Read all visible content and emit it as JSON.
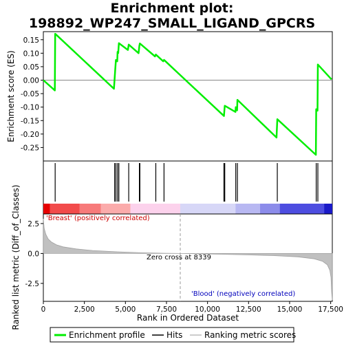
{
  "title_line1": "Enrichment plot:",
  "title_line2": "198892_WP247_SMALL_LIGAND_GPCRS",
  "colors": {
    "enrichment": "#00ee00",
    "hits": "#000000",
    "metric_fill": "#c0c0c0",
    "red": "#cc0000",
    "blue": "#0000bb"
  },
  "chart_data": {
    "type": "line",
    "x_range": [
      0,
      17600
    ],
    "es_panel": {
      "ylabel": "Enrichment score (ES)",
      "ylim": [
        -0.3,
        0.18
      ],
      "y_ticks": [
        0.15,
        0.1,
        0.05,
        0.0,
        -0.05,
        -0.1,
        -0.15,
        -0.2,
        -0.25
      ],
      "y_tick_labels": [
        "0.15",
        "0.10",
        "0.05",
        "0.00",
        "-0.05",
        "-0.10",
        "-0.15",
        "-0.20",
        "-0.25"
      ],
      "points": [
        [
          0,
          0.0
        ],
        [
          700,
          -0.038
        ],
        [
          720,
          0.172
        ],
        [
          4300,
          -0.032
        ],
        [
          4340,
          0.005
        ],
        [
          4380,
          0.04
        ],
        [
          4420,
          0.075
        ],
        [
          4500,
          0.07
        ],
        [
          4520,
          0.105
        ],
        [
          4560,
          0.1
        ],
        [
          4600,
          0.137
        ],
        [
          5150,
          0.112
        ],
        [
          5200,
          0.132
        ],
        [
          5800,
          0.1
        ],
        [
          5850,
          0.128
        ],
        [
          5880,
          0.136
        ],
        [
          6800,
          0.088
        ],
        [
          6850,
          0.095
        ],
        [
          7300,
          0.07
        ],
        [
          7350,
          0.075
        ],
        [
          11000,
          -0.133
        ],
        [
          11050,
          -0.095
        ],
        [
          11700,
          -0.118
        ],
        [
          11720,
          -0.1
        ],
        [
          11800,
          -0.112
        ],
        [
          11820,
          -0.073
        ],
        [
          14200,
          -0.213
        ],
        [
          14250,
          -0.145
        ],
        [
          16600,
          -0.277
        ],
        [
          16620,
          -0.108
        ],
        [
          16700,
          -0.113
        ],
        [
          16720,
          0.058
        ],
        [
          17550,
          0.003
        ]
      ]
    },
    "hits": [
      720,
      4340,
      4420,
      4520,
      4600,
      5200,
      5850,
      5880,
      6850,
      7350,
      11000,
      11050,
      11720,
      11820,
      14250,
      16620,
      16720
    ],
    "metric_panel": {
      "ylabel": "Ranked list metric (Diff_of_Classes)",
      "ylim": [
        -4.0,
        3.3
      ],
      "y_ticks": [
        2.5,
        0.0,
        -2.5
      ],
      "y_tick_labels": [
        "2.5",
        "0.0",
        "-2.5"
      ],
      "curve": [
        [
          0,
          2.9
        ],
        [
          50,
          2.1
        ],
        [
          150,
          1.6
        ],
        [
          300,
          1.2
        ],
        [
          500,
          0.95
        ],
        [
          800,
          0.72
        ],
        [
          1200,
          0.55
        ],
        [
          2000,
          0.38
        ],
        [
          3000,
          0.25
        ],
        [
          4500,
          0.14
        ],
        [
          6000,
          0.06
        ],
        [
          7500,
          0.02
        ],
        [
          8339,
          0.0
        ],
        [
          9500,
          -0.03
        ],
        [
          11000,
          -0.07
        ],
        [
          12500,
          -0.12
        ],
        [
          14000,
          -0.18
        ],
        [
          15500,
          -0.28
        ],
        [
          16500,
          -0.45
        ],
        [
          17000,
          -0.65
        ],
        [
          17300,
          -0.95
        ],
        [
          17450,
          -1.4
        ],
        [
          17520,
          -2.0
        ],
        [
          17560,
          -3.2
        ],
        [
          17600,
          -3.9
        ]
      ],
      "zero_cross": 8339,
      "zero_cross_label": "Zero cross at 8339",
      "pos_label": "'Breast' (positively correlated)",
      "neg_label": "'Blood' (negatively correlated)"
    },
    "x_ticks": [
      0,
      2500,
      5000,
      7500,
      10000,
      12500,
      15000,
      17500
    ],
    "x_tick_labels": [
      "0",
      "2,500",
      "5,000",
      "7,500",
      "10,000",
      "12,500",
      "15,000",
      "17,500"
    ],
    "xlabel": "Rank in Ordered Dataset",
    "color_bar": [
      {
        "from": 0,
        "to": 400,
        "color": "#e60000"
      },
      {
        "from": 400,
        "to": 2200,
        "color": "#f24b4b"
      },
      {
        "from": 2200,
        "to": 3500,
        "color": "#f77a7a"
      },
      {
        "from": 3500,
        "to": 5300,
        "color": "#fbabab"
      },
      {
        "from": 5300,
        "to": 8339,
        "color": "#fcd2ec"
      },
      {
        "from": 8339,
        "to": 11700,
        "color": "#d7d7f7"
      },
      {
        "from": 11700,
        "to": 13200,
        "color": "#b8b8f2"
      },
      {
        "from": 13200,
        "to": 14400,
        "color": "#8c8cea"
      },
      {
        "from": 14400,
        "to": 17100,
        "color": "#4d4de0"
      },
      {
        "from": 17100,
        "to": 17600,
        "color": "#1a1ac8"
      }
    ],
    "legend": [
      "Enrichment profile",
      "Hits",
      "Ranking metric scores"
    ]
  }
}
